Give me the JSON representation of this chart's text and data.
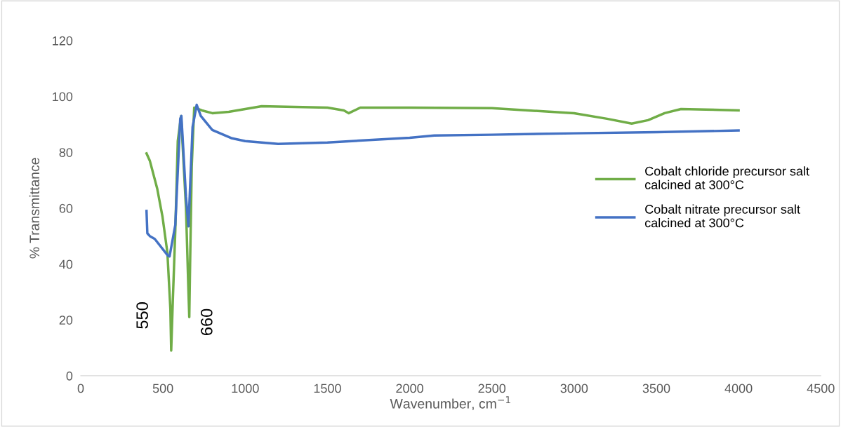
{
  "chart_data": {
    "type": "line",
    "xlabel": "Wavenumber, cm$^{−1}$",
    "ylabel": "% Transmittance",
    "xlim": [
      0,
      4500
    ],
    "xticks": [
      0,
      500,
      1000,
      1500,
      2000,
      2500,
      3000,
      3500,
      4000,
      4500
    ],
    "ylim": [
      0,
      120
    ],
    "yticks": [
      0,
      20,
      40,
      60,
      80,
      100,
      120
    ],
    "grid": false,
    "legend": "right",
    "marker": "none",
    "line_style": "solid",
    "series": [
      {
        "name": "Cobalt chloride precursor salt\ncalcined at 300°C",
        "color": "#70ad47",
        "x": [
          400,
          420,
          465,
          497,
          527,
          545,
          550,
          560,
          575,
          590,
          610,
          640,
          655,
          660,
          665,
          675,
          690,
          737,
          800,
          900,
          1000,
          1100,
          1500,
          1600,
          1630,
          1700,
          2000,
          2500,
          3000,
          3200,
          3350,
          3450,
          3550,
          3650,
          3800,
          4000
        ],
        "values": [
          79.6,
          77,
          67,
          57,
          44,
          24,
          9,
          27,
          52,
          84,
          93,
          60,
          30,
          21,
          40,
          75,
          96,
          95,
          94,
          94.5,
          95.5,
          96.5,
          96,
          95,
          94,
          96,
          96,
          95.8,
          94,
          92,
          90.3,
          91.5,
          94,
          95.5,
          95.3,
          95
        ]
      },
      {
        "name": "Cobalt nitrate precursor salt\ncalcined at 300°C",
        "color": "#4472c4",
        "x": [
          400,
          405,
          420,
          450,
          530,
          540,
          575,
          605,
          612,
          640,
          655,
          680,
          705,
          730,
          800,
          920,
          1000,
          1200,
          1500,
          2000,
          2150,
          2500,
          3000,
          3500,
          4000
        ],
        "values": [
          59,
          51,
          50,
          49,
          43,
          42.7,
          54,
          92,
          93,
          64,
          53.5,
          89,
          97,
          93,
          88,
          85,
          84,
          83,
          83.5,
          85.2,
          86,
          86.3,
          86.8,
          87.2,
          87.8
        ]
      }
    ],
    "annotations": [
      "550",
      "660"
    ]
  }
}
